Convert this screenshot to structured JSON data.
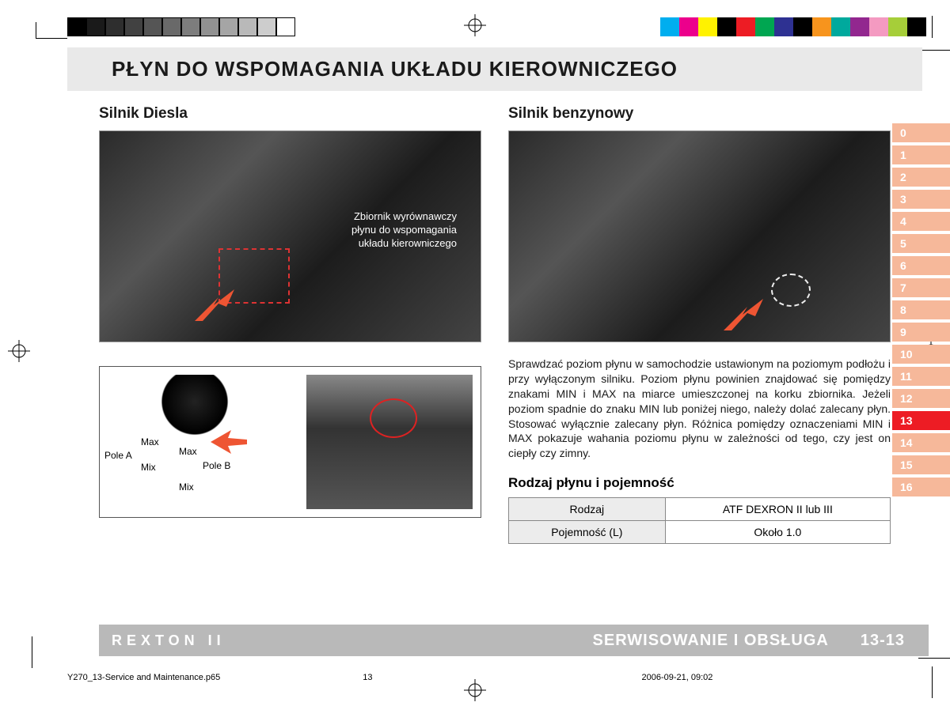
{
  "colorbar_left": [
    "#000000",
    "#1a1a1a",
    "#2e2e2e",
    "#414141",
    "#555555",
    "#696969",
    "#7d7d7d",
    "#919191",
    "#a5a5a5",
    "#b9b9b9",
    "#cdcdcd",
    "#ffffff"
  ],
  "colorbar_right": [
    "#00aeef",
    "#ec008c",
    "#fff200",
    "#000000",
    "#ed1c24",
    "#00a651",
    "#2e3192",
    "#000000",
    "#f7941d",
    "#00a99d",
    "#92278f",
    "#f49ac1",
    "#a6ce39",
    "#000000"
  ],
  "title": "PŁYN DO WSPOMAGANIA UKŁADU KIEROWNICZEGO",
  "left": {
    "heading": "Silnik Diesla",
    "overlay": "Zbiornik wyrównawczy\npłynu do wspomagania\nukładu kierowniczego",
    "cap_labels": {
      "poleA": "Pole A",
      "poleB": "Pole B",
      "max1": "Max",
      "max2": "Max",
      "mix1": "Mix",
      "mix2": "Mix"
    }
  },
  "right": {
    "heading": "Silnik benzynowy",
    "paragraph": "Sprawdzać poziom płynu w samochodzie ustawionym na poziomym podłożu i przy wyłączonym silniku. Poziom płynu powinien znajdować się pomiędzy znakami MIN i MAX na miarce umieszczonej na korku zbiornika. Jeżeli poziom spadnie do znaku MIN lub poniżej niego, należy dolać zalecany płyn. Stosować wyłącznie zalecany płyn. Różnica pomiędzy oznaczeniami MIN i MAX pokazuje wahania poziomu płynu w zależności od tego, czy jest on ciepły czy zimny.",
    "table_heading": "Rodzaj płynu i pojemność",
    "table": {
      "rows": [
        {
          "label": "Rodzaj",
          "value": "ATF DEXRON II lub III"
        },
        {
          "label": "Pojemność (L)",
          "value": "Około 1.0"
        }
      ]
    }
  },
  "tabs": {
    "items": [
      "0",
      "1",
      "2",
      "3",
      "4",
      "5",
      "6",
      "7",
      "8",
      "9",
      "10",
      "11",
      "12",
      "13",
      "14",
      "15",
      "16"
    ],
    "active_index": 13,
    "inactive_color": "#f6b89a",
    "active_color": "#ed1c24"
  },
  "footer": {
    "brand": "REXTON II",
    "section_title": "SERWISOWANIE I OBSŁUGA",
    "page_num": "13-13"
  },
  "meta": {
    "file": "Y270_13-Service and Maintenance.p65",
    "page": "13",
    "date": "2006-09-21, 09:02"
  }
}
